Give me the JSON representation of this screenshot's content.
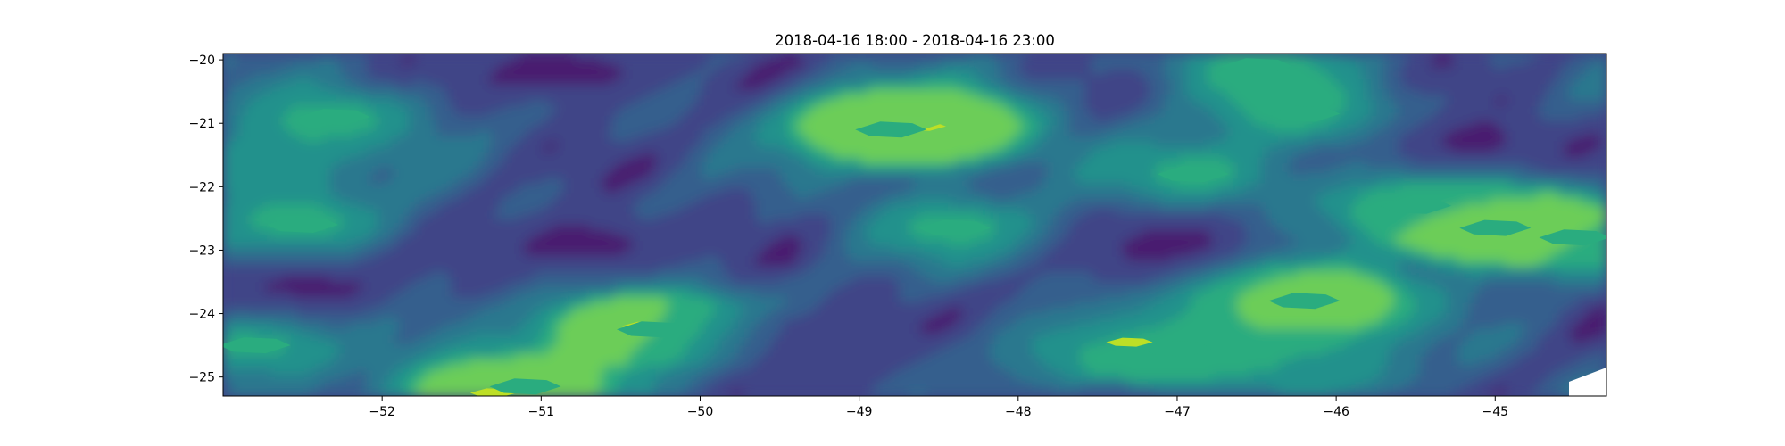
{
  "chart_data": {
    "type": "contour",
    "title": "2018-04-16 18:00 - 2018-04-16 23:00",
    "xlabel": "",
    "ylabel": "",
    "xlim": [
      -53.0,
      -44.3
    ],
    "ylim": [
      -25.3,
      -19.9
    ],
    "x_ticks": [
      -52,
      -51,
      -50,
      -49,
      -48,
      -47,
      -46,
      -45
    ],
    "y_ticks": [
      -20,
      -21,
      -22,
      -23,
      -24,
      -25
    ],
    "x_tick_labels": [
      "−52",
      "−51",
      "−50",
      "−49",
      "−48",
      "−47",
      "−46",
      "−45"
    ],
    "y_tick_labels": [
      "−20",
      "−21",
      "−22",
      "−23",
      "−24",
      "−25"
    ],
    "grid": false,
    "levels": 7,
    "colormap": [
      "#481e6f",
      "#414487",
      "#345f8d",
      "#2a788e",
      "#21918c",
      "#2aac7f",
      "#6ccd59",
      "#bddf26"
    ],
    "features": [
      {
        "x": -48.6,
        "y": -21.05,
        "level": 7
      },
      {
        "x": -48.7,
        "y": -21.0,
        "level": 6
      },
      {
        "x": -48.8,
        "y": -21.1,
        "level": 5
      },
      {
        "x": -47.3,
        "y": -24.45,
        "level": 7
      },
      {
        "x": -47.0,
        "y": -24.55,
        "level": 5
      },
      {
        "x": -46.2,
        "y": -23.78,
        "level": 7
      },
      {
        "x": -46.2,
        "y": -23.8,
        "level": 5
      },
      {
        "x": -44.95,
        "y": -22.62,
        "level": 7
      },
      {
        "x": -45.0,
        "y": -22.65,
        "level": 5
      },
      {
        "x": -44.5,
        "y": -22.8,
        "level": 5
      },
      {
        "x": -45.5,
        "y": -22.3,
        "level": 5
      },
      {
        "x": -51.3,
        "y": -25.25,
        "level": 7
      },
      {
        "x": -51.1,
        "y": -25.15,
        "level": 5
      },
      {
        "x": -50.35,
        "y": -24.2,
        "level": 7
      },
      {
        "x": -50.3,
        "y": -24.25,
        "level": 5
      },
      {
        "x": -48.4,
        "y": -22.65,
        "level": 5
      },
      {
        "x": -46.9,
        "y": -21.8,
        "level": 5
      },
      {
        "x": -52.3,
        "y": -20.9,
        "level": 5
      },
      {
        "x": -52.5,
        "y": -22.6,
        "level": 5
      },
      {
        "x": -46.5,
        "y": -20.1,
        "level": 5
      },
      {
        "x": -46.2,
        "y": -20.85,
        "level": 5
      },
      {
        "x": -52.8,
        "y": -24.5,
        "level": 5
      },
      {
        "x": -52.8,
        "y": -21.7,
        "level": 4
      },
      {
        "x": -50.7,
        "y": -22.9,
        "level": 0
      },
      {
        "x": -49.5,
        "y": -24.4,
        "level": 0
      },
      {
        "x": -47.0,
        "y": -22.9,
        "level": 0
      },
      {
        "x": -50.8,
        "y": -20.2,
        "level": 0
      },
      {
        "x": -45.2,
        "y": -21.3,
        "level": 0
      },
      {
        "x": -52.5,
        "y": -23.6,
        "level": 0
      },
      {
        "x": -47.5,
        "y": -24.1,
        "level": 1
      },
      {
        "x": -46.0,
        "y": -24.9,
        "level": 4
      },
      {
        "x": -48.2,
        "y": -25.0,
        "level": 2
      }
    ]
  }
}
